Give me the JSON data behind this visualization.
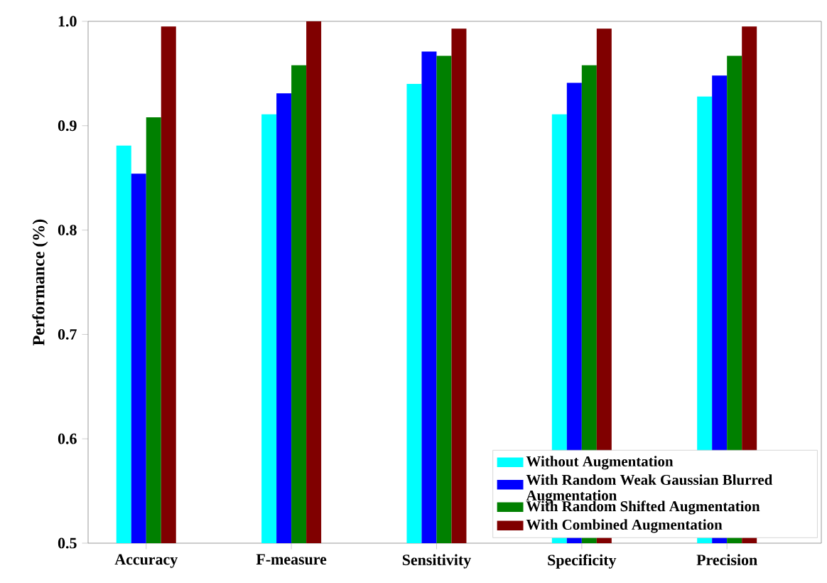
{
  "chart_data": {
    "type": "bar",
    "ylabel": "Performance (%)",
    "categories": [
      "Accuracy",
      "F-measure",
      "Sensitivity",
      "Specificity",
      "Precision"
    ],
    "series": [
      {
        "name": "Without Augmentation",
        "color": "#00ffff",
        "values": [
          0.881,
          0.911,
          0.94,
          0.911,
          0.928
        ]
      },
      {
        "name": "With Random Weak Gaussian Blurred Augmentation",
        "color": "#0000ff",
        "values": [
          0.854,
          0.931,
          0.971,
          0.941,
          0.948
        ]
      },
      {
        "name": "With Random Shifted Augmentation",
        "color": "#008000",
        "values": [
          0.908,
          0.958,
          0.967,
          0.958,
          0.967
        ]
      },
      {
        "name": "With Combined Augmentation",
        "color": "#800000",
        "values": [
          0.995,
          1.0,
          0.993,
          0.993,
          0.995
        ]
      }
    ],
    "ylim": [
      0.5,
      1.0
    ],
    "yticks": [
      0.5,
      0.6,
      0.7,
      0.8,
      0.9,
      {
        "value": 1.0,
        "label": "1.0"
      }
    ],
    "grid": false,
    "legend": "bottom right"
  }
}
